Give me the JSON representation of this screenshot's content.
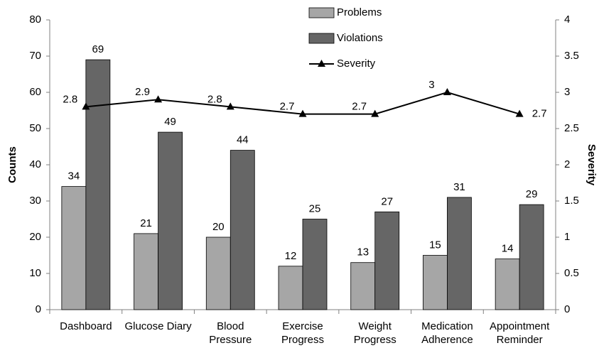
{
  "chart_data": {
    "type": "bar",
    "categories": [
      [
        "Dashboard"
      ],
      [
        "Glucose Diary"
      ],
      [
        "Blood",
        "Pressure"
      ],
      [
        "Exercise",
        "Progress"
      ],
      [
        "Weight",
        "Progress"
      ],
      [
        "Medication",
        "Adherence"
      ],
      [
        "Appointment",
        "Reminder"
      ]
    ],
    "series": [
      {
        "name": "Problems",
        "type": "bar",
        "color": "#a6a6a6",
        "values": [
          34,
          21,
          20,
          12,
          13,
          15,
          14
        ]
      },
      {
        "name": "Violations",
        "type": "bar",
        "color": "#666666",
        "values": [
          69,
          49,
          44,
          25,
          27,
          31,
          29
        ]
      },
      {
        "name": "Severity",
        "type": "line",
        "axis": "y2",
        "color": "#000000",
        "values": [
          2.8,
          2.9,
          2.8,
          2.7,
          2.7,
          3,
          2.7
        ]
      }
    ],
    "ylabel": "Counts",
    "y2label": "Severity",
    "ylim": [
      0,
      80
    ],
    "yticks": [
      0,
      10,
      20,
      30,
      40,
      50,
      60,
      70,
      80
    ],
    "y2lim": [
      0,
      4
    ],
    "y2ticks": [
      0,
      0.5,
      1,
      1.5,
      2,
      2.5,
      3,
      3.5,
      4
    ],
    "legend": "top"
  }
}
